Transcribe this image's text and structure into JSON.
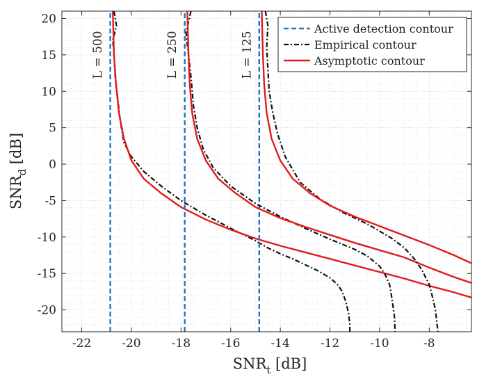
{
  "chart_data": {
    "type": "line",
    "title": "",
    "xlabel_main": "SNR",
    "xlabel_sub": "t",
    "xlabel_unit": " [dB]",
    "ylabel_main": "SNR",
    "ylabel_sub": "d",
    "ylabel_unit": " [dB]",
    "xlim": [
      -22.8,
      -6.3
    ],
    "ylim": [
      -23,
      21
    ],
    "grid": true,
    "legend_position": "top-right",
    "x_ticks": [
      {
        "value": -22,
        "label": "-22"
      },
      {
        "value": -20,
        "label": "-20"
      },
      {
        "value": -18,
        "label": "-18"
      },
      {
        "value": -16,
        "label": "-16"
      },
      {
        "value": -14,
        "label": "-14"
      },
      {
        "value": -12,
        "label": "-12"
      },
      {
        "value": -10,
        "label": "-10"
      },
      {
        "value": -8,
        "label": "-8"
      }
    ],
    "y_ticks": [
      {
        "value": 20,
        "label": "20"
      },
      {
        "value": 15,
        "label": "15"
      },
      {
        "value": 10,
        "label": "10"
      },
      {
        "value": 5,
        "label": "5"
      },
      {
        "value": 0,
        "label": "0"
      },
      {
        "value": -5,
        "label": "-5"
      },
      {
        "value": -10,
        "label": "-10"
      },
      {
        "value": -15,
        "label": "-15"
      },
      {
        "value": -20,
        "label": "-20"
      }
    ],
    "curve_labels": [
      {
        "text": "L = 500",
        "x": -21.2,
        "y": 15
      },
      {
        "text": "L = 250",
        "x": -18.2,
        "y": 15
      },
      {
        "text": "L = 125",
        "x": -15.2,
        "y": 15
      }
    ],
    "series": [
      {
        "name": "Active detection contour",
        "style": "dashed",
        "color": "#1f77c4",
        "group": "legend",
        "x": [
          -20.85,
          -20.85
        ],
        "y": [
          -23,
          21
        ]
      },
      {
        "name": "Empirical contour",
        "style": "dashdot",
        "color": "#111111",
        "group": "legend",
        "x": [
          -20.7,
          -20.6,
          -20.75,
          -20.7,
          -20.65,
          -20.55,
          -20.45,
          -20.3,
          -20.0,
          -19.5,
          -18.8,
          -18.0,
          -17.0,
          -16.0,
          -15.0,
          -14.5,
          -14.0,
          -13.5,
          -13.0,
          -12.5,
          -12.0,
          -11.7,
          -11.5,
          -11.35,
          -11.25,
          -11.2,
          -11.2
        ],
        "y": [
          21,
          19,
          17,
          15,
          12,
          9,
          6,
          3,
          1,
          -1,
          -3,
          -5,
          -7,
          -8.8,
          -10.5,
          -11.5,
          -12.3,
          -13.0,
          -13.8,
          -14.6,
          -15.6,
          -16.5,
          -17.5,
          -19,
          -20.5,
          -22,
          -23
        ]
      },
      {
        "name": "Asymptotic contour",
        "style": "solid",
        "color": "#e31a1c",
        "group": "legend",
        "x": [
          -20.75,
          -20.7,
          -20.62,
          -20.5,
          -20.3,
          -20.0,
          -19.5,
          -18.8,
          -18.0,
          -17.0,
          -16.0,
          -15.0,
          -14.0,
          -13.0,
          -12.0,
          -11.0,
          -10.0,
          -9.0,
          -8.0,
          -7.0,
          -6.3
        ],
        "y": [
          21,
          15,
          11,
          7,
          3.5,
          0.5,
          -2,
          -4,
          -5.9,
          -7.6,
          -9.0,
          -10.2,
          -11.2,
          -12.1,
          -13.0,
          -13.9,
          -14.8,
          -15.7,
          -16.7,
          -17.6,
          -18.3
        ]
      },
      {
        "name": "Active detection contour L=250",
        "style": "dashed",
        "color": "#1f77c4",
        "group": "extra",
        "x": [
          -17.85,
          -17.85
        ],
        "y": [
          -23,
          21
        ]
      },
      {
        "name": "Active detection contour L=125",
        "style": "dashed",
        "color": "#1f77c4",
        "group": "extra",
        "x": [
          -14.85,
          -14.85
        ],
        "y": [
          -23,
          21
        ]
      },
      {
        "name": "Empirical contour L=250",
        "style": "dashdot",
        "color": "#111111",
        "group": "extra",
        "x": [
          -17.6,
          -17.8,
          -17.7,
          -17.6,
          -17.5,
          -17.35,
          -17.1,
          -16.7,
          -16.0,
          -15.0,
          -14.0,
          -13.0,
          -12.0,
          -11.0,
          -10.5,
          -10.0,
          -9.8,
          -9.6,
          -9.5,
          -9.4,
          -9.38
        ],
        "y": [
          21,
          18,
          15,
          12,
          8,
          5,
          2,
          -0.5,
          -3,
          -5.4,
          -7.2,
          -8.8,
          -10.3,
          -11.7,
          -12.6,
          -14.0,
          -15.0,
          -16.5,
          -18.5,
          -21,
          -23
        ]
      },
      {
        "name": "Asymptotic contour L=250",
        "style": "solid",
        "color": "#e31a1c",
        "group": "extra",
        "x": [
          -17.75,
          -17.7,
          -17.65,
          -17.55,
          -17.35,
          -17.0,
          -16.5,
          -15.8,
          -15.0,
          -14.0,
          -13.0,
          -12.0,
          -11.0,
          -10.0,
          -9.0,
          -8.0,
          -7.0,
          -6.3
        ],
        "y": [
          21,
          15,
          11,
          7,
          3.5,
          0.5,
          -2,
          -4,
          -5.9,
          -7.4,
          -8.6,
          -9.7,
          -10.8,
          -11.8,
          -12.8,
          -14.2,
          -15.5,
          -16.3
        ]
      },
      {
        "name": "Empirical contour L=125",
        "style": "dashdot",
        "color": "#111111",
        "group": "extra",
        "x": [
          -14.6,
          -14.5,
          -14.55,
          -14.5,
          -14.45,
          -14.3,
          -14.1,
          -13.8,
          -13.2,
          -12.4,
          -11.5,
          -10.5,
          -9.5,
          -9.0,
          -8.6,
          -8.3,
          -8.0,
          -7.85,
          -7.75,
          -7.7,
          -7.65
        ],
        "y": [
          21,
          19,
          16,
          13,
          10,
          7,
          4,
          1,
          -2.5,
          -4.8,
          -6.6,
          -8.2,
          -10.2,
          -11.5,
          -13.0,
          -14.5,
          -16.5,
          -18.5,
          -20.0,
          -21.5,
          -23
        ]
      },
      {
        "name": "Asymptotic contour L=125",
        "style": "solid",
        "color": "#e31a1c",
        "group": "extra",
        "x": [
          -14.75,
          -14.7,
          -14.65,
          -14.55,
          -14.35,
          -14.0,
          -13.5,
          -12.8,
          -12.0,
          -11.0,
          -10.0,
          -9.0,
          -8.0,
          -7.0,
          -6.3
        ],
        "y": [
          21,
          15,
          11,
          7,
          3.5,
          0.5,
          -2,
          -4,
          -5.7,
          -7.2,
          -8.5,
          -9.8,
          -11.1,
          -12.5,
          -13.6
        ]
      }
    ]
  }
}
